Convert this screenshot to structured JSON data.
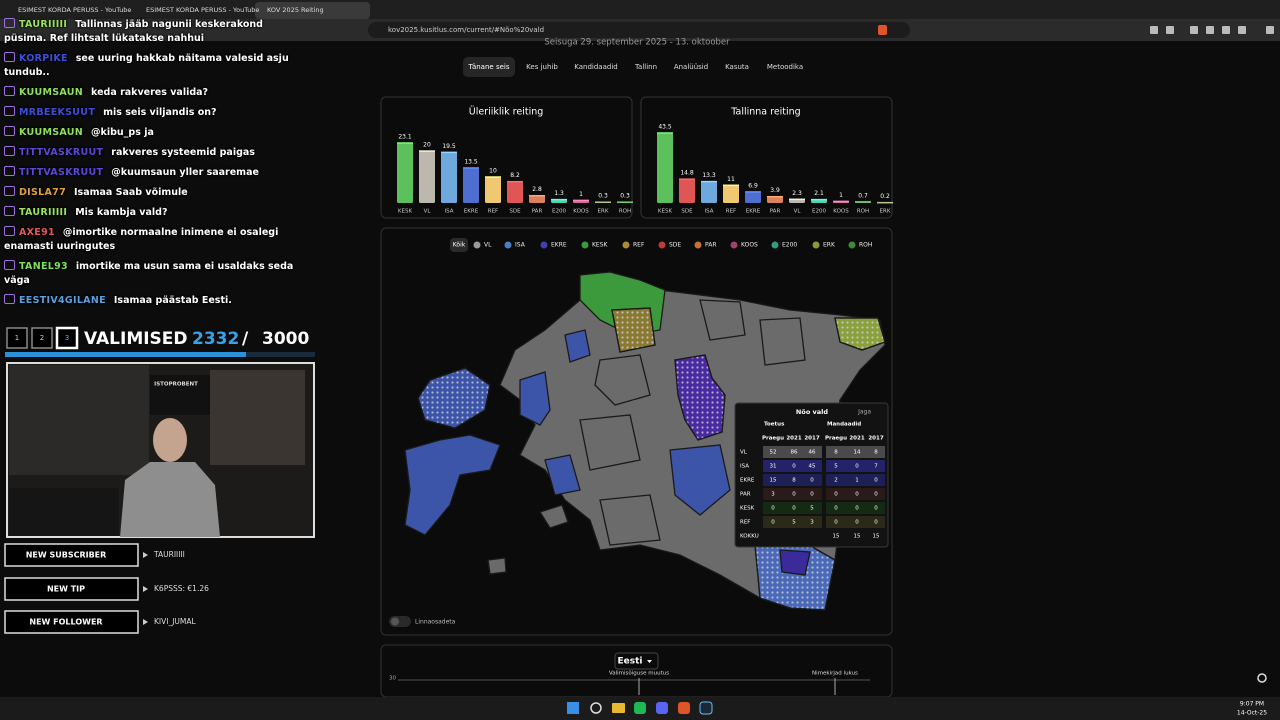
{
  "browser": {
    "tabs": [
      "ESIMEST KORDA PERUSS - YouTube",
      "ESIMEST KORDA PERUSS - YouTube",
      "KOV 2025 Reiting"
    ],
    "url": "kov2025.kusitlus.com/current/#Nõo%20vald"
  },
  "chat": [
    {
      "user": "TAURIIIII",
      "color": "#9be35a",
      "text": "Tallinnas jääb nagunii keskerakond püsima. Ref lihtsalt lükatakse nahhui"
    },
    {
      "user": "KORPIKE",
      "color": "#3d4fd8",
      "text": "see uuring hakkab näitama valesid asju tundub.."
    },
    {
      "user": "KUUMSAUN",
      "color": "#8fe05a",
      "text": "keda rakveres valida?"
    },
    {
      "user": "MRBEEKSUUT",
      "color": "#3d4fd8",
      "text": "mis seis viljandis on?"
    },
    {
      "user": "KUUMSAUN",
      "color": "#8fe05a",
      "text": "@kibu_ps ja"
    },
    {
      "user": "TITTVASKRUUT",
      "color": "#5b48d8",
      "text": "rakveres systeemid paigas"
    },
    {
      "user": "TITTVASKRUUT",
      "color": "#5b48d8",
      "text": "@kuumsaun yller saaremae"
    },
    {
      "user": "DISLA77",
      "color": "#e0a23a",
      "text": "Isamaa Saab võimule"
    },
    {
      "user": "TAURIIIII",
      "color": "#9be35a",
      "text": "Mis kambja vald?"
    },
    {
      "user": "AXE91",
      "color": "#e05a5a",
      "text": "@imortike normaalne inimene ei osalegi enamasti uuringutes"
    },
    {
      "user": "TANEL93",
      "color": "#7ee05a",
      "text": "imortike ma usun sama ei usaldaks seda väga"
    },
    {
      "user": "EESTIV4GILANE",
      "color": "#5aa0e0",
      "text": "Isamaa päästab Eesti."
    }
  ],
  "overlay": {
    "pages": [
      "1",
      "2",
      "3"
    ],
    "title": "VALIMISED",
    "current": 2332,
    "separator": "/",
    "total": 3000,
    "webcam_sign": "ISTOPROBENT",
    "alerts": [
      {
        "label": "NEW SUBSCRIBER",
        "value": "TAURIIIII"
      },
      {
        "label": "NEW TIP",
        "value": "K6PSSS: €1.26"
      },
      {
        "label": "NEW FOLLOWER",
        "value": "KIVI_JUMAL"
      }
    ]
  },
  "site": {
    "subtitle": "Seisuga 29. september 2025 - 13. oktoober",
    "nav": [
      "Tänane seis",
      "Kes juhib",
      "Kandidaadid",
      "Tallinn",
      "Analüüsid",
      "Kasuta",
      "Metoodika"
    ],
    "active_nav": 0,
    "map_all": "Kõik",
    "map_legend": [
      {
        "name": "VL",
        "color": "#9a9a9a"
      },
      {
        "name": "ISA",
        "color": "#4a7ec0"
      },
      {
        "name": "EKRE",
        "color": "#3f3fb0"
      },
      {
        "name": "KESK",
        "color": "#3c9a3c"
      },
      {
        "name": "REF",
        "color": "#b08a30"
      },
      {
        "name": "SDE",
        "color": "#c03a3a"
      },
      {
        "name": "PAR",
        "color": "#c8703a"
      },
      {
        "name": "KOOS",
        "color": "#a04070"
      },
      {
        "name": "E200",
        "color": "#2aa080"
      },
      {
        "name": "ERK",
        "color": "#8a9a3a"
      },
      {
        "name": "ROH",
        "color": "#3a8a3a"
      }
    ],
    "toggle": "Linnaosadeta",
    "popup": {
      "title": "Nõo vald",
      "share": "Jaga",
      "support": "Toetus",
      "seats": "Mandaadid",
      "columns": [
        "Praegu",
        "2021",
        "2017"
      ],
      "rows": [
        {
          "party": "VL",
          "support": [
            52,
            86,
            46
          ],
          "seats": [
            8,
            14,
            8
          ]
        },
        {
          "party": "ISA",
          "support": [
            31,
            0,
            45
          ],
          "seats": [
            5,
            0,
            7
          ]
        },
        {
          "party": "EKRE",
          "support": [
            15,
            8,
            0
          ],
          "seats": [
            2,
            1,
            0
          ]
        },
        {
          "party": "PAR",
          "support": [
            3,
            0,
            0
          ],
          "seats": [
            0,
            0,
            0
          ]
        },
        {
          "party": "KESK",
          "support": [
            0,
            0,
            5
          ],
          "seats": [
            0,
            0,
            0
          ]
        },
        {
          "party": "REF",
          "support": [
            0,
            5,
            3
          ],
          "seats": [
            0,
            0,
            0
          ]
        }
      ],
      "total": {
        "party": "KOKKU",
        "seats": [
          15,
          15,
          15
        ]
      }
    },
    "bottom": {
      "dropdown": "Eesti",
      "axis_label": "30",
      "markers": [
        "Valimisõiguse muutus",
        "Nimekirjad lukus"
      ]
    }
  },
  "chart_data": [
    {
      "type": "bar",
      "title": "Üleriiklik reiting",
      "categories": [
        "KESK",
        "VL",
        "ISA",
        "EKRE",
        "REF",
        "SDE",
        "PAR",
        "E200",
        "KOOS",
        "ERK",
        "ROH"
      ],
      "values": [
        23.1,
        20,
        19.5,
        13.5,
        10,
        8.2,
        2.8,
        1.3,
        1,
        0.3,
        0.3
      ],
      "colors": [
        "#5cc05c",
        "#bdb8ad",
        "#6fa8dc",
        "#4f6fd0",
        "#f0c872",
        "#e05555",
        "#d9825b",
        "#4fd1b0",
        "#d46a9a",
        "#8a9a6a",
        "#5ca05c"
      ]
    },
    {
      "type": "bar",
      "title": "Tallinna reiting",
      "categories": [
        "KESK",
        "SDE",
        "ISA",
        "REF",
        "EKRE",
        "PAR",
        "VL",
        "E200",
        "KOOS",
        "ROH",
        "ERK"
      ],
      "values": [
        43.5,
        14.8,
        13.3,
        11,
        6.9,
        3.9,
        2.3,
        2.1,
        1,
        0.7,
        0.2
      ],
      "colors": [
        "#5cc05c",
        "#e05555",
        "#6fa8dc",
        "#f0c872",
        "#4f6fd0",
        "#d9825b",
        "#bdb8ad",
        "#4fd1b0",
        "#d46a9a",
        "#5ca05c",
        "#8a9a6a"
      ]
    }
  ],
  "taskbar": {
    "time": "9:07 PM",
    "date": "14-Oct-25"
  }
}
